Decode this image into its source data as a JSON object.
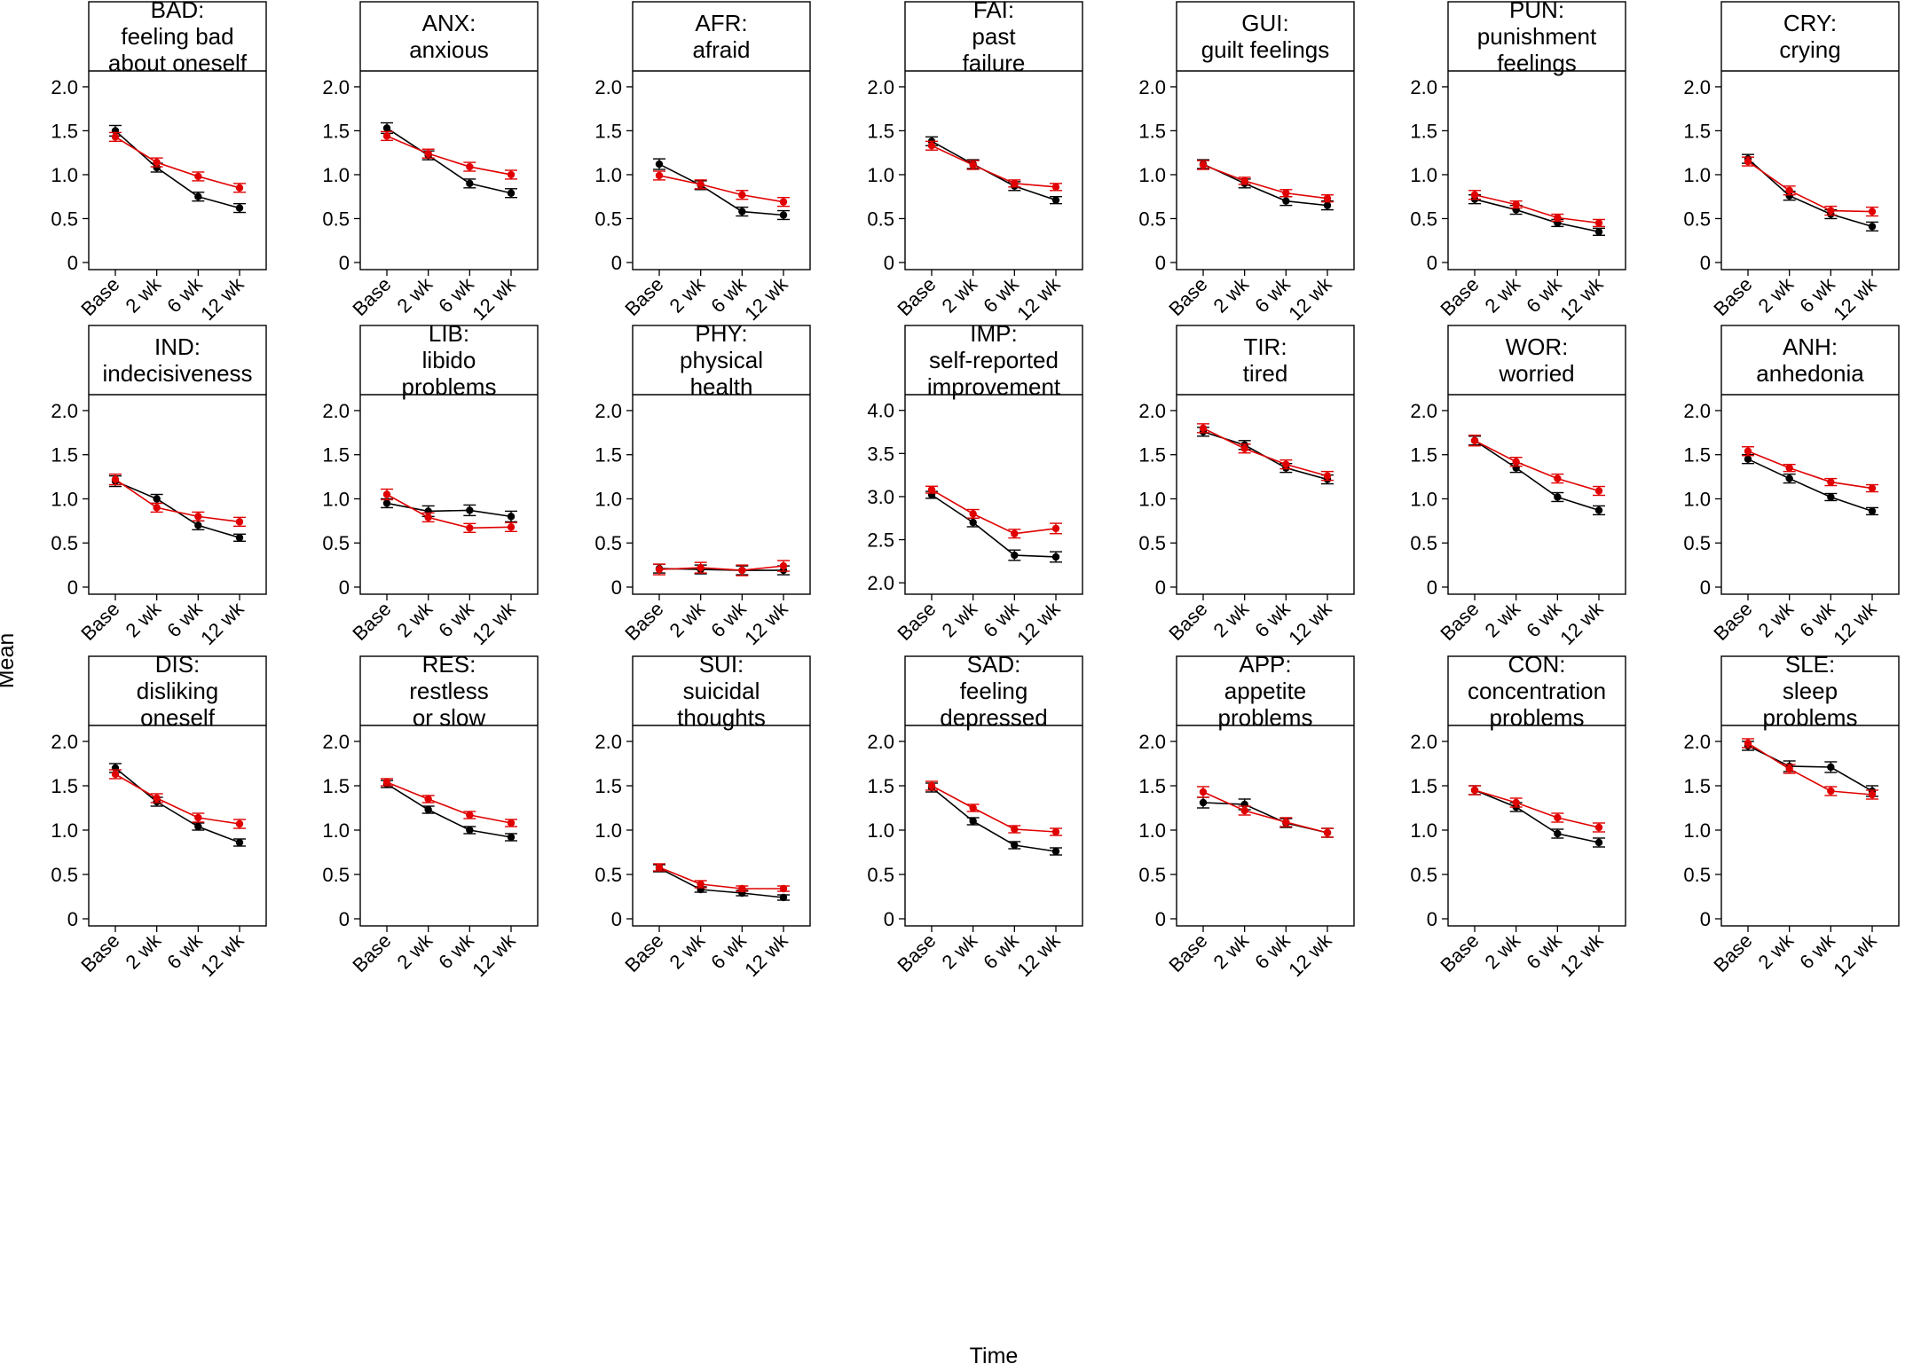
{
  "figure": {
    "ylabel": "Mean",
    "xlabel": "Time",
    "colors": {
      "series_a": "#000000",
      "series_b": "#e00000"
    }
  },
  "chart_data": [
    {
      "type": "line",
      "title": [
        "BAD:",
        "feeling bad",
        "about oneself"
      ],
      "categories": [
        "Base",
        "2 wk",
        "6 wk",
        "12 wk"
      ],
      "yticks": [
        "0",
        "0.5",
        "1.0",
        "1.5",
        "2.0"
      ],
      "ylim": [
        0,
        2.1
      ],
      "series": [
        {
          "name": "black",
          "values": [
            1.5,
            1.08,
            0.75,
            0.62
          ],
          "err": [
            0.06,
            0.05,
            0.05,
            0.05
          ]
        },
        {
          "name": "red",
          "values": [
            1.43,
            1.14,
            0.98,
            0.85
          ],
          "err": [
            0.05,
            0.05,
            0.05,
            0.05
          ]
        }
      ]
    },
    {
      "type": "line",
      "title": [
        "ANX:",
        "anxious"
      ],
      "categories": [
        "Base",
        "2 wk",
        "6 wk",
        "12 wk"
      ],
      "yticks": [
        "0",
        "0.5",
        "1.0",
        "1.5",
        "2.0"
      ],
      "ylim": [
        0,
        2.1
      ],
      "series": [
        {
          "name": "black",
          "values": [
            1.53,
            1.22,
            0.9,
            0.79
          ],
          "err": [
            0.06,
            0.05,
            0.05,
            0.05
          ]
        },
        {
          "name": "red",
          "values": [
            1.44,
            1.24,
            1.09,
            1.0
          ],
          "err": [
            0.05,
            0.05,
            0.05,
            0.05
          ]
        }
      ]
    },
    {
      "type": "line",
      "title": [
        "AFR:",
        "afraid"
      ],
      "categories": [
        "Base",
        "2 wk",
        "6 wk",
        "12 wk"
      ],
      "yticks": [
        "0",
        "0.5",
        "1.0",
        "1.5",
        "2.0"
      ],
      "ylim": [
        0,
        2.1
      ],
      "series": [
        {
          "name": "black",
          "values": [
            1.12,
            0.88,
            0.58,
            0.54
          ],
          "err": [
            0.06,
            0.05,
            0.05,
            0.05
          ]
        },
        {
          "name": "red",
          "values": [
            0.99,
            0.89,
            0.77,
            0.69
          ],
          "err": [
            0.05,
            0.05,
            0.05,
            0.05
          ]
        }
      ]
    },
    {
      "type": "line",
      "title": [
        "FAI:",
        "past",
        "failure"
      ],
      "categories": [
        "Base",
        "2 wk",
        "6 wk",
        "12 wk"
      ],
      "yticks": [
        "0",
        "0.5",
        "1.0",
        "1.5",
        "2.0"
      ],
      "ylim": [
        0,
        2.1
      ],
      "series": [
        {
          "name": "black",
          "values": [
            1.38,
            1.12,
            0.87,
            0.71
          ],
          "err": [
            0.05,
            0.05,
            0.05,
            0.04
          ]
        },
        {
          "name": "red",
          "values": [
            1.33,
            1.11,
            0.9,
            0.86
          ],
          "err": [
            0.05,
            0.05,
            0.04,
            0.04
          ]
        }
      ]
    },
    {
      "type": "line",
      "title": [
        "GUI:",
        "guilt feelings"
      ],
      "categories": [
        "Base",
        "2 wk",
        "6 wk",
        "12 wk"
      ],
      "yticks": [
        "0",
        "0.5",
        "1.0",
        "1.5",
        "2.0"
      ],
      "ylim": [
        0,
        2.1
      ],
      "series": [
        {
          "name": "black",
          "values": [
            1.12,
            0.9,
            0.7,
            0.65
          ],
          "err": [
            0.05,
            0.05,
            0.05,
            0.05
          ]
        },
        {
          "name": "red",
          "values": [
            1.11,
            0.93,
            0.79,
            0.73
          ],
          "err": [
            0.05,
            0.04,
            0.04,
            0.04
          ]
        }
      ]
    },
    {
      "type": "line",
      "title": [
        "PUN:",
        "punishment",
        "feelings"
      ],
      "categories": [
        "Base",
        "2 wk",
        "6 wk",
        "12 wk"
      ],
      "yticks": [
        "0",
        "0.5",
        "1.0",
        "1.5",
        "2.0"
      ],
      "ylim": [
        0,
        2.1
      ],
      "series": [
        {
          "name": "black",
          "values": [
            0.72,
            0.6,
            0.45,
            0.35
          ],
          "err": [
            0.05,
            0.05,
            0.04,
            0.04
          ]
        },
        {
          "name": "red",
          "values": [
            0.77,
            0.66,
            0.51,
            0.45
          ],
          "err": [
            0.05,
            0.04,
            0.04,
            0.04
          ]
        }
      ]
    },
    {
      "type": "line",
      "title": [
        "CRY:",
        "crying"
      ],
      "categories": [
        "Base",
        "2 wk",
        "6 wk",
        "12 wk"
      ],
      "yticks": [
        "0",
        "0.5",
        "1.0",
        "1.5",
        "2.0"
      ],
      "ylim": [
        0,
        2.1
      ],
      "series": [
        {
          "name": "black",
          "values": [
            1.18,
            0.76,
            0.55,
            0.41
          ],
          "err": [
            0.05,
            0.05,
            0.05,
            0.05
          ]
        },
        {
          "name": "red",
          "values": [
            1.15,
            0.82,
            0.59,
            0.58
          ],
          "err": [
            0.05,
            0.05,
            0.05,
            0.05
          ]
        }
      ]
    },
    {
      "type": "line",
      "title": [
        "IND:",
        "indecisiveness"
      ],
      "categories": [
        "Base",
        "2 wk",
        "6 wk",
        "12 wk"
      ],
      "yticks": [
        "0",
        "0.5",
        "1.0",
        "1.5",
        "2.0"
      ],
      "ylim": [
        0,
        2.1
      ],
      "series": [
        {
          "name": "black",
          "values": [
            1.2,
            1.0,
            0.7,
            0.56
          ],
          "err": [
            0.06,
            0.05,
            0.05,
            0.04
          ]
        },
        {
          "name": "red",
          "values": [
            1.22,
            0.9,
            0.8,
            0.74
          ],
          "err": [
            0.06,
            0.05,
            0.05,
            0.05
          ]
        }
      ]
    },
    {
      "type": "line",
      "title": [
        "LIB:",
        "libido",
        "problems"
      ],
      "categories": [
        "Base",
        "2 wk",
        "6 wk",
        "12 wk"
      ],
      "yticks": [
        "0",
        "0.5",
        "1.0",
        "1.5",
        "2.0"
      ],
      "ylim": [
        0,
        2.1
      ],
      "series": [
        {
          "name": "black",
          "values": [
            0.95,
            0.86,
            0.87,
            0.8
          ],
          "err": [
            0.05,
            0.06,
            0.06,
            0.06
          ]
        },
        {
          "name": "red",
          "values": [
            1.05,
            0.79,
            0.67,
            0.68
          ],
          "err": [
            0.06,
            0.05,
            0.05,
            0.05
          ]
        }
      ]
    },
    {
      "type": "line",
      "title": [
        "PHY:",
        "physical",
        "health"
      ],
      "categories": [
        "Base",
        "2 wk",
        "6 wk",
        "12 wk"
      ],
      "yticks": [
        "0",
        "0.5",
        "1.0",
        "1.5",
        "2.0"
      ],
      "ylim": [
        0,
        2.1
      ],
      "series": [
        {
          "name": "black",
          "values": [
            0.21,
            0.2,
            0.19,
            0.19
          ],
          "err": [
            0.05,
            0.05,
            0.05,
            0.05
          ]
        },
        {
          "name": "red",
          "values": [
            0.2,
            0.22,
            0.19,
            0.24
          ],
          "err": [
            0.06,
            0.06,
            0.06,
            0.06
          ]
        }
      ]
    },
    {
      "type": "line",
      "title": [
        "IMP:",
        "self-reported",
        "improvement"
      ],
      "categories": [
        "Base",
        "2 wk",
        "6 wk",
        "12 wk"
      ],
      "yticks": [
        "2.0",
        "2.5",
        "3.0",
        "3.5",
        "4.0"
      ],
      "ylim": [
        1.95,
        4.1
      ],
      "series": [
        {
          "name": "black",
          "values": [
            3.02,
            2.7,
            2.32,
            2.3
          ],
          "err": [
            0.04,
            0.05,
            0.06,
            0.06
          ]
        },
        {
          "name": "red",
          "values": [
            3.08,
            2.8,
            2.57,
            2.63
          ],
          "err": [
            0.04,
            0.05,
            0.05,
            0.06
          ]
        }
      ]
    },
    {
      "type": "line",
      "title": [
        "TIR:",
        "tired"
      ],
      "categories": [
        "Base",
        "2 wk",
        "6 wk",
        "12 wk"
      ],
      "yticks": [
        "0",
        "0.5",
        "1.0",
        "1.5",
        "2.0"
      ],
      "ylim": [
        0,
        2.1
      ],
      "series": [
        {
          "name": "black",
          "values": [
            1.76,
            1.61,
            1.35,
            1.22
          ],
          "err": [
            0.05,
            0.05,
            0.05,
            0.05
          ]
        },
        {
          "name": "red",
          "values": [
            1.8,
            1.57,
            1.39,
            1.26
          ],
          "err": [
            0.05,
            0.05,
            0.05,
            0.05
          ]
        }
      ]
    },
    {
      "type": "line",
      "title": [
        "WOR:",
        "worried"
      ],
      "categories": [
        "Base",
        "2 wk",
        "6 wk",
        "12 wk"
      ],
      "yticks": [
        "0",
        "0.5",
        "1.0",
        "1.5",
        "2.0"
      ],
      "ylim": [
        0,
        2.1
      ],
      "series": [
        {
          "name": "black",
          "values": [
            1.66,
            1.35,
            1.02,
            0.87
          ],
          "err": [
            0.05,
            0.05,
            0.05,
            0.05
          ]
        },
        {
          "name": "red",
          "values": [
            1.66,
            1.42,
            1.23,
            1.09
          ],
          "err": [
            0.06,
            0.05,
            0.05,
            0.05
          ]
        }
      ]
    },
    {
      "type": "line",
      "title": [
        "ANH:",
        "anhedonia"
      ],
      "categories": [
        "Base",
        "2 wk",
        "6 wk",
        "12 wk"
      ],
      "yticks": [
        "0",
        "0.5",
        "1.0",
        "1.5",
        "2.0"
      ],
      "ylim": [
        0,
        2.1
      ],
      "series": [
        {
          "name": "black",
          "values": [
            1.45,
            1.23,
            1.02,
            0.86
          ],
          "err": [
            0.05,
            0.05,
            0.04,
            0.04
          ]
        },
        {
          "name": "red",
          "values": [
            1.54,
            1.35,
            1.19,
            1.12
          ],
          "err": [
            0.05,
            0.04,
            0.04,
            0.04
          ]
        }
      ]
    },
    {
      "type": "line",
      "title": [
        "DIS:",
        "disliking",
        "oneself"
      ],
      "categories": [
        "Base",
        "2 wk",
        "6 wk",
        "12 wk"
      ],
      "yticks": [
        "0",
        "0.5",
        "1.0",
        "1.5",
        "2.0"
      ],
      "ylim": [
        0,
        2.1
      ],
      "series": [
        {
          "name": "black",
          "values": [
            1.7,
            1.32,
            1.04,
            0.86
          ],
          "err": [
            0.05,
            0.05,
            0.04,
            0.04
          ]
        },
        {
          "name": "red",
          "values": [
            1.63,
            1.36,
            1.14,
            1.07
          ],
          "err": [
            0.05,
            0.05,
            0.05,
            0.05
          ]
        }
      ]
    },
    {
      "type": "line",
      "title": [
        "RES:",
        "restless",
        "or slow"
      ],
      "categories": [
        "Base",
        "2 wk",
        "6 wk",
        "12 wk"
      ],
      "yticks": [
        "0",
        "0.5",
        "1.0",
        "1.5",
        "2.0"
      ],
      "ylim": [
        0,
        2.1
      ],
      "series": [
        {
          "name": "black",
          "values": [
            1.52,
            1.23,
            1.0,
            0.92
          ],
          "err": [
            0.04,
            0.04,
            0.04,
            0.04
          ]
        },
        {
          "name": "red",
          "values": [
            1.54,
            1.35,
            1.17,
            1.08
          ],
          "err": [
            0.04,
            0.04,
            0.04,
            0.04
          ]
        }
      ]
    },
    {
      "type": "line",
      "title": [
        "SUI:",
        "suicidal",
        "thoughts"
      ],
      "categories": [
        "Base",
        "2 wk",
        "6 wk",
        "12 wk"
      ],
      "yticks": [
        "0",
        "0.5",
        "1.0",
        "1.5",
        "2.0"
      ],
      "ylim": [
        0,
        2.1
      ],
      "series": [
        {
          "name": "black",
          "values": [
            0.57,
            0.33,
            0.29,
            0.24
          ],
          "err": [
            0.04,
            0.03,
            0.03,
            0.03
          ]
        },
        {
          "name": "red",
          "values": [
            0.58,
            0.39,
            0.34,
            0.34
          ],
          "err": [
            0.04,
            0.04,
            0.03,
            0.03
          ]
        }
      ]
    },
    {
      "type": "line",
      "title": [
        "SAD:",
        "feeling",
        "depressed"
      ],
      "categories": [
        "Base",
        "2 wk",
        "6 wk",
        "12 wk"
      ],
      "yticks": [
        "0",
        "0.5",
        "1.0",
        "1.5",
        "2.0"
      ],
      "ylim": [
        0,
        2.1
      ],
      "series": [
        {
          "name": "black",
          "values": [
            1.48,
            1.1,
            0.83,
            0.76
          ],
          "err": [
            0.05,
            0.04,
            0.04,
            0.04
          ]
        },
        {
          "name": "red",
          "values": [
            1.5,
            1.25,
            1.01,
            0.98
          ],
          "err": [
            0.05,
            0.04,
            0.04,
            0.04
          ]
        }
      ]
    },
    {
      "type": "line",
      "title": [
        "APP:",
        "appetite",
        "problems"
      ],
      "categories": [
        "Base",
        "2 wk",
        "6 wk",
        "12 wk"
      ],
      "yticks": [
        "0",
        "0.5",
        "1.0",
        "1.5",
        "2.0"
      ],
      "ylim": [
        0,
        2.1
      ],
      "series": [
        {
          "name": "black",
          "values": [
            1.31,
            1.29,
            1.08,
            0.97
          ],
          "err": [
            0.06,
            0.06,
            0.05,
            0.05
          ]
        },
        {
          "name": "red",
          "values": [
            1.43,
            1.22,
            1.09,
            0.97
          ],
          "err": [
            0.06,
            0.05,
            0.05,
            0.05
          ]
        }
      ]
    },
    {
      "type": "line",
      "title": [
        "CON:",
        "concentration",
        "problems"
      ],
      "categories": [
        "Base",
        "2 wk",
        "6 wk",
        "12 wk"
      ],
      "yticks": [
        "0",
        "0.5",
        "1.0",
        "1.5",
        "2.0"
      ],
      "ylim": [
        0,
        2.1
      ],
      "series": [
        {
          "name": "black",
          "values": [
            1.45,
            1.26,
            0.96,
            0.86
          ],
          "err": [
            0.05,
            0.05,
            0.05,
            0.05
          ]
        },
        {
          "name": "red",
          "values": [
            1.45,
            1.31,
            1.14,
            1.03
          ],
          "err": [
            0.05,
            0.05,
            0.05,
            0.05
          ]
        }
      ]
    },
    {
      "type": "line",
      "title": [
        "SLE:",
        "sleep",
        "problems"
      ],
      "categories": [
        "Base",
        "2 wk",
        "6 wk",
        "12 wk"
      ],
      "yticks": [
        "0",
        "0.5",
        "1.0",
        "1.5",
        "2.0"
      ],
      "ylim": [
        0,
        2.1
      ],
      "series": [
        {
          "name": "black",
          "values": [
            1.95,
            1.72,
            1.71,
            1.44
          ],
          "err": [
            0.05,
            0.06,
            0.06,
            0.06
          ]
        },
        {
          "name": "red",
          "values": [
            1.98,
            1.69,
            1.44,
            1.4
          ],
          "err": [
            0.05,
            0.05,
            0.05,
            0.05
          ]
        }
      ]
    }
  ]
}
